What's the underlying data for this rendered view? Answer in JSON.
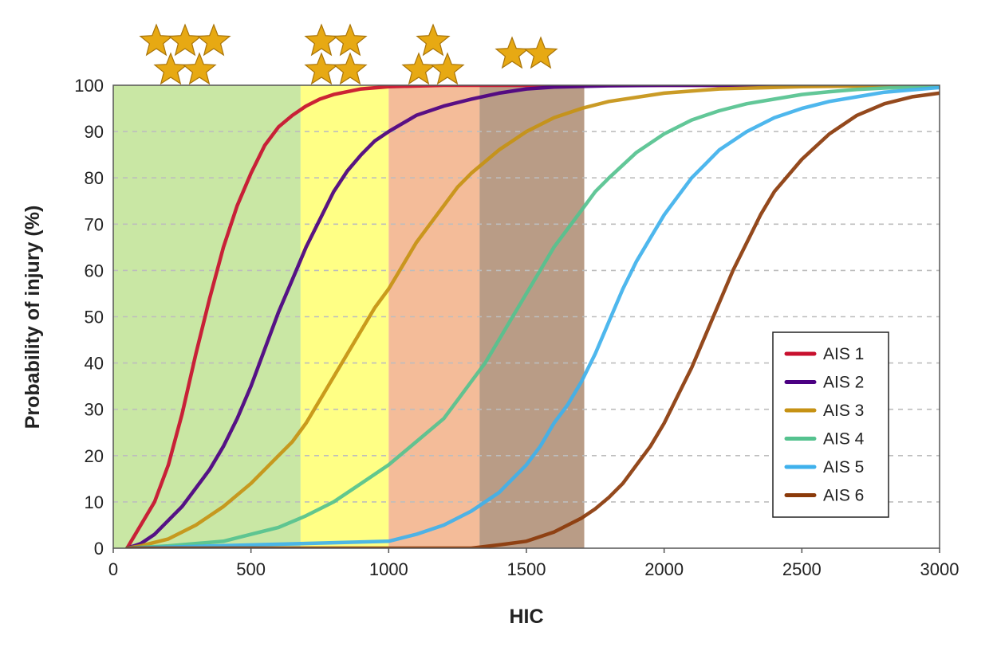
{
  "chart_data": {
    "type": "line",
    "title": "",
    "xlabel": "HIC",
    "ylabel": "Probability of injury (%)",
    "xlim": [
      0,
      3000
    ],
    "ylim": [
      0,
      100
    ],
    "xticks": [
      0,
      500,
      1000,
      1500,
      2000,
      2500,
      3000
    ],
    "yticks": [
      0,
      10,
      20,
      30,
      40,
      50,
      60,
      70,
      80,
      90,
      100
    ],
    "grid": "horizontal dashed",
    "legend_position": "lower-right",
    "bands": [
      {
        "from": 0,
        "to": 680,
        "color": "#9cd35a",
        "opacity": 0.55,
        "stars": 5
      },
      {
        "from": 680,
        "to": 1000,
        "color": "#ffff33",
        "opacity": 0.6,
        "stars": 4
      },
      {
        "from": 1000,
        "to": 1330,
        "color": "#ec8f55",
        "opacity": 0.6,
        "stars": 3
      },
      {
        "from": 1330,
        "to": 1710,
        "color": "#8a5a36",
        "opacity": 0.6,
        "stars": 2
      }
    ],
    "star_color": "#e7a913",
    "series": [
      {
        "name": "AIS 1",
        "color": "#c8102e",
        "x": [
          50,
          100,
          150,
          200,
          250,
          300,
          350,
          400,
          450,
          500,
          550,
          600,
          650,
          700,
          750,
          800,
          900,
          1000,
          1200,
          1500,
          3000
        ],
        "y": [
          0,
          5,
          10,
          18,
          29,
          42,
          54,
          65,
          74,
          81,
          87,
          91,
          93.5,
          95.5,
          97,
          98,
          99.2,
          99.7,
          100,
          100,
          100
        ]
      },
      {
        "name": "AIS 2",
        "color": "#4b0082",
        "x": [
          50,
          100,
          150,
          200,
          250,
          300,
          350,
          400,
          450,
          500,
          550,
          600,
          650,
          700,
          750,
          800,
          850,
          900,
          950,
          1000,
          1100,
          1200,
          1300,
          1400,
          1500,
          1600,
          1800,
          2000,
          3000
        ],
        "y": [
          0,
          1,
          3,
          6,
          9,
          13,
          17,
          22,
          28,
          35,
          43,
          51,
          58,
          65,
          71,
          77,
          81.5,
          85,
          88,
          90,
          93.5,
          95.5,
          97,
          98.3,
          99.2,
          99.6,
          99.9,
          100,
          100
        ]
      },
      {
        "name": "AIS 3",
        "color": "#c69214",
        "x": [
          50,
          100,
          200,
          300,
          400,
          500,
          600,
          650,
          700,
          750,
          800,
          850,
          900,
          950,
          1000,
          1050,
          1100,
          1150,
          1200,
          1250,
          1300,
          1400,
          1500,
          1600,
          1700,
          1800,
          2000,
          2200,
          2500,
          3000
        ],
        "y": [
          0,
          0.5,
          2,
          5,
          9,
          14,
          20,
          23,
          27,
          32,
          37,
          42,
          47,
          52,
          56,
          61,
          66,
          70,
          74,
          78,
          81,
          86,
          90,
          93,
          95,
          96.5,
          98.3,
          99.2,
          99.7,
          100
        ]
      },
      {
        "name": "AIS 4",
        "color": "#55c28f",
        "x": [
          50,
          200,
          400,
          500,
          600,
          700,
          800,
          900,
          1000,
          1100,
          1200,
          1250,
          1300,
          1350,
          1400,
          1450,
          1500,
          1550,
          1600,
          1650,
          1700,
          1750,
          1800,
          1900,
          2000,
          2100,
          2200,
          2300,
          2400,
          2500,
          2600,
          2700,
          2800,
          3000
        ],
        "y": [
          0,
          0.5,
          1.5,
          3,
          4.5,
          7,
          10,
          14,
          18,
          23,
          28,
          32,
          36,
          40,
          45,
          50,
          55,
          60,
          65,
          69,
          73,
          77,
          80,
          85.5,
          89.5,
          92.5,
          94.5,
          96,
          97,
          98,
          98.6,
          99.1,
          99.4,
          99.8
        ]
      },
      {
        "name": "AIS 5",
        "color": "#3fb1ec",
        "x": [
          50,
          1000,
          1100,
          1200,
          1300,
          1350,
          1400,
          1450,
          1500,
          1550,
          1600,
          1650,
          1700,
          1750,
          1800,
          1850,
          1900,
          1950,
          2000,
          2050,
          2100,
          2150,
          2200,
          2300,
          2400,
          2500,
          2600,
          2700,
          2800,
          2900,
          3000
        ],
        "y": [
          0,
          1.5,
          3,
          5,
          8,
          10,
          12,
          15,
          18,
          22,
          27,
          31,
          36,
          42,
          49,
          56,
          62,
          67,
          72,
          76,
          80,
          83,
          86,
          90,
          93,
          95,
          96.5,
          97.5,
          98.5,
          99,
          99.5
        ]
      },
      {
        "name": "AIS 6",
        "color": "#8b3a0a",
        "x": [
          50,
          1300,
          1400,
          1500,
          1550,
          1600,
          1650,
          1700,
          1750,
          1800,
          1850,
          1900,
          1950,
          2000,
          2050,
          2100,
          2150,
          2200,
          2250,
          2300,
          2350,
          2400,
          2500,
          2600,
          2700,
          2800,
          2900,
          3000
        ],
        "y": [
          0,
          0,
          0.7,
          1.5,
          2.5,
          3.5,
          5,
          6.5,
          8.5,
          11,
          14,
          18,
          22,
          27,
          33,
          39,
          46,
          53,
          60,
          66,
          72,
          77,
          84,
          89.5,
          93.5,
          96,
          97.5,
          98.3
        ]
      }
    ]
  }
}
